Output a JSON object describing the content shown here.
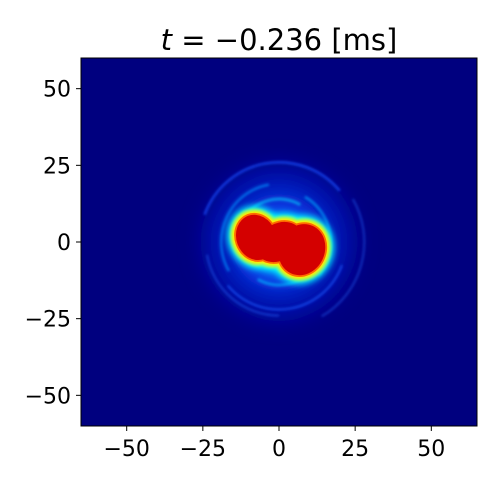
{
  "chart_data": {
    "type": "heatmap",
    "title": {
      "var": "t",
      "rest": " = −0.236 [ms]"
    },
    "xlabel": "",
    "ylabel": "",
    "xlim": [
      -65,
      65
    ],
    "ylim": [
      -60,
      60
    ],
    "x_ticks": [
      -50,
      -25,
      0,
      25,
      50
    ],
    "y_ticks": [
      -50,
      -25,
      0,
      25,
      50
    ],
    "x_tick_labels": [
      "−50",
      "−25",
      "0",
      "25",
      "50"
    ],
    "y_tick_labels": [
      "−50",
      "−25",
      "0",
      "25",
      "50"
    ],
    "colormap": "jet",
    "background_color": "#00007f",
    "core_color": "#d40000",
    "core_center": [
      0,
      0
    ],
    "core_extent": {
      "x": [
        -14,
        14
      ],
      "y": [
        -11,
        9
      ]
    },
    "halo_extent_radius": 30,
    "grid": false,
    "legend": "none",
    "colorbar": false
  }
}
